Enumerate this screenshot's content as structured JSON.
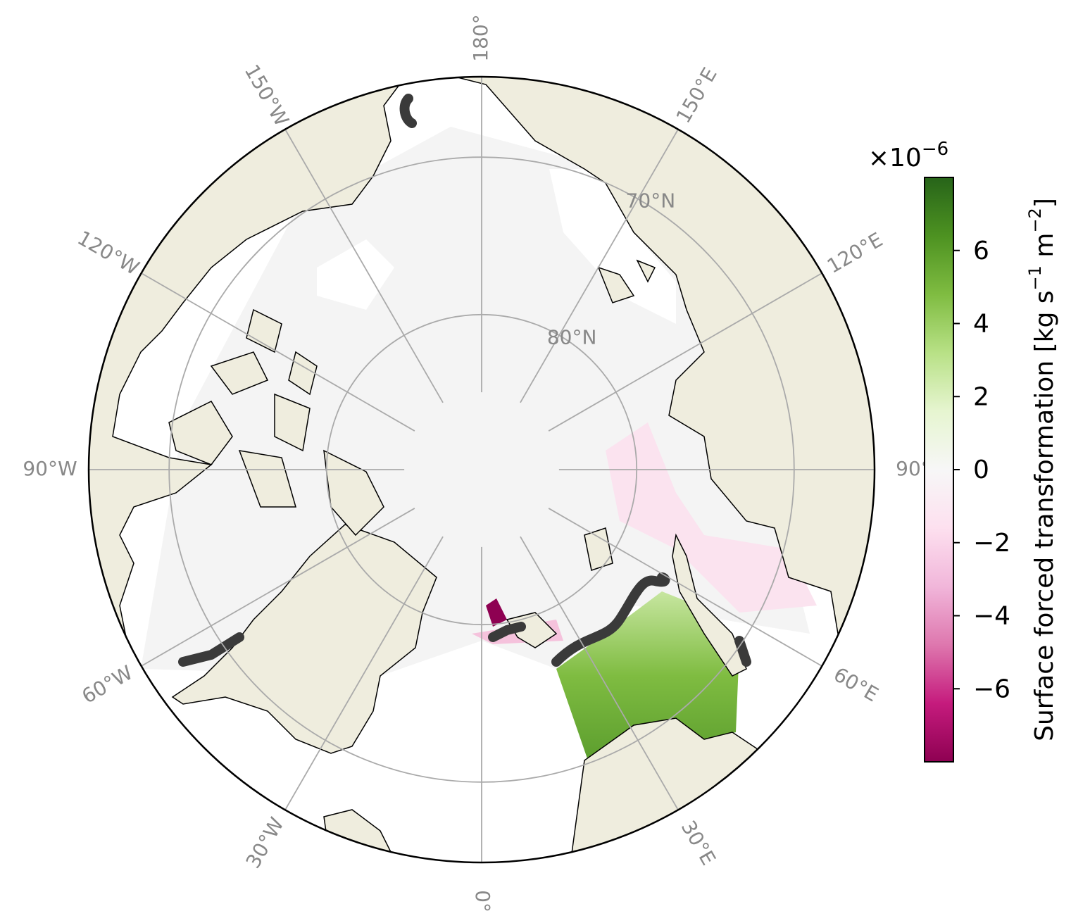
{
  "map": {
    "projection": "north-polar-stereographic",
    "lat_lim": [
      65,
      90
    ],
    "lon_ticks": [
      {
        "value": 180,
        "label": "180°"
      },
      {
        "value": 150,
        "label": "150°E"
      },
      {
        "value": 120,
        "label": "120°E"
      },
      {
        "value": 90,
        "label": "90°"
      },
      {
        "value": 60,
        "label": "60°E"
      },
      {
        "value": 30,
        "label": "30°E"
      },
      {
        "value": 0,
        "label": "0°"
      },
      {
        "value": -30,
        "label": "30°W"
      },
      {
        "value": -60,
        "label": "60°W"
      },
      {
        "value": -90,
        "label": "90°W"
      },
      {
        "value": -120,
        "label": "120°W"
      },
      {
        "value": -150,
        "label": "150°W"
      }
    ],
    "lat_ticks": [
      {
        "value": 70,
        "label": "70°N"
      },
      {
        "value": 80,
        "label": "80°N"
      }
    ],
    "land_color": "#efedde",
    "grid_color": "#aaaaaa"
  },
  "colorbar": {
    "colormap": "PiYG",
    "colors": [
      "#8e0152",
      "#c51b7d",
      "#de77ae",
      "#f1b6da",
      "#fde0ef",
      "#f7f7f7",
      "#e6f5d0",
      "#b8e186",
      "#7fbc41",
      "#4d9221",
      "#276419"
    ],
    "ylim": [
      -8,
      8
    ],
    "yticks": [
      {
        "value": -6,
        "label": "−6"
      },
      {
        "value": -4,
        "label": "−4"
      },
      {
        "value": -2,
        "label": "−2"
      },
      0,
      2,
      4,
      6
    ],
    "scale_label": [
      "×10",
      "−6"
    ],
    "label": [
      "Surface forced transformation [kg s",
      "−1",
      " m",
      "−2",
      "]"
    ]
  }
}
